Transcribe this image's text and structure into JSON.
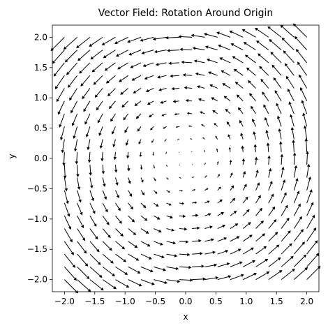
{
  "chart_data": {
    "type": "quiver",
    "title": "Vector Field: Rotation Around Origin",
    "xlabel": "x",
    "ylabel": "y",
    "xlim": [
      -2.2,
      2.2
    ],
    "ylim": [
      -2.2,
      2.2
    ],
    "xticks": [
      -2.0,
      -1.5,
      -1.0,
      -0.5,
      0.0,
      0.5,
      1.0,
      1.5,
      2.0
    ],
    "yticks": [
      -2.0,
      -1.5,
      -1.0,
      -0.5,
      0.0,
      0.5,
      1.0,
      1.5,
      2.0
    ],
    "xtick_labels": [
      "−2.0",
      "−1.5",
      "−1.0",
      "−0.5",
      "0.0",
      "0.5",
      "1.0",
      "1.5",
      "2.0"
    ],
    "ytick_labels": [
      "−2.0",
      "−1.5",
      "−1.0",
      "−0.5",
      "0.0",
      "0.5",
      "1.0",
      "1.5",
      "2.0"
    ],
    "grid": false,
    "field": {
      "u": "-y",
      "v": "x",
      "x_range": [
        -2,
        2
      ],
      "y_range": [
        -2,
        2
      ],
      "points_per_axis": 20
    },
    "arrow_color": "#000000"
  }
}
